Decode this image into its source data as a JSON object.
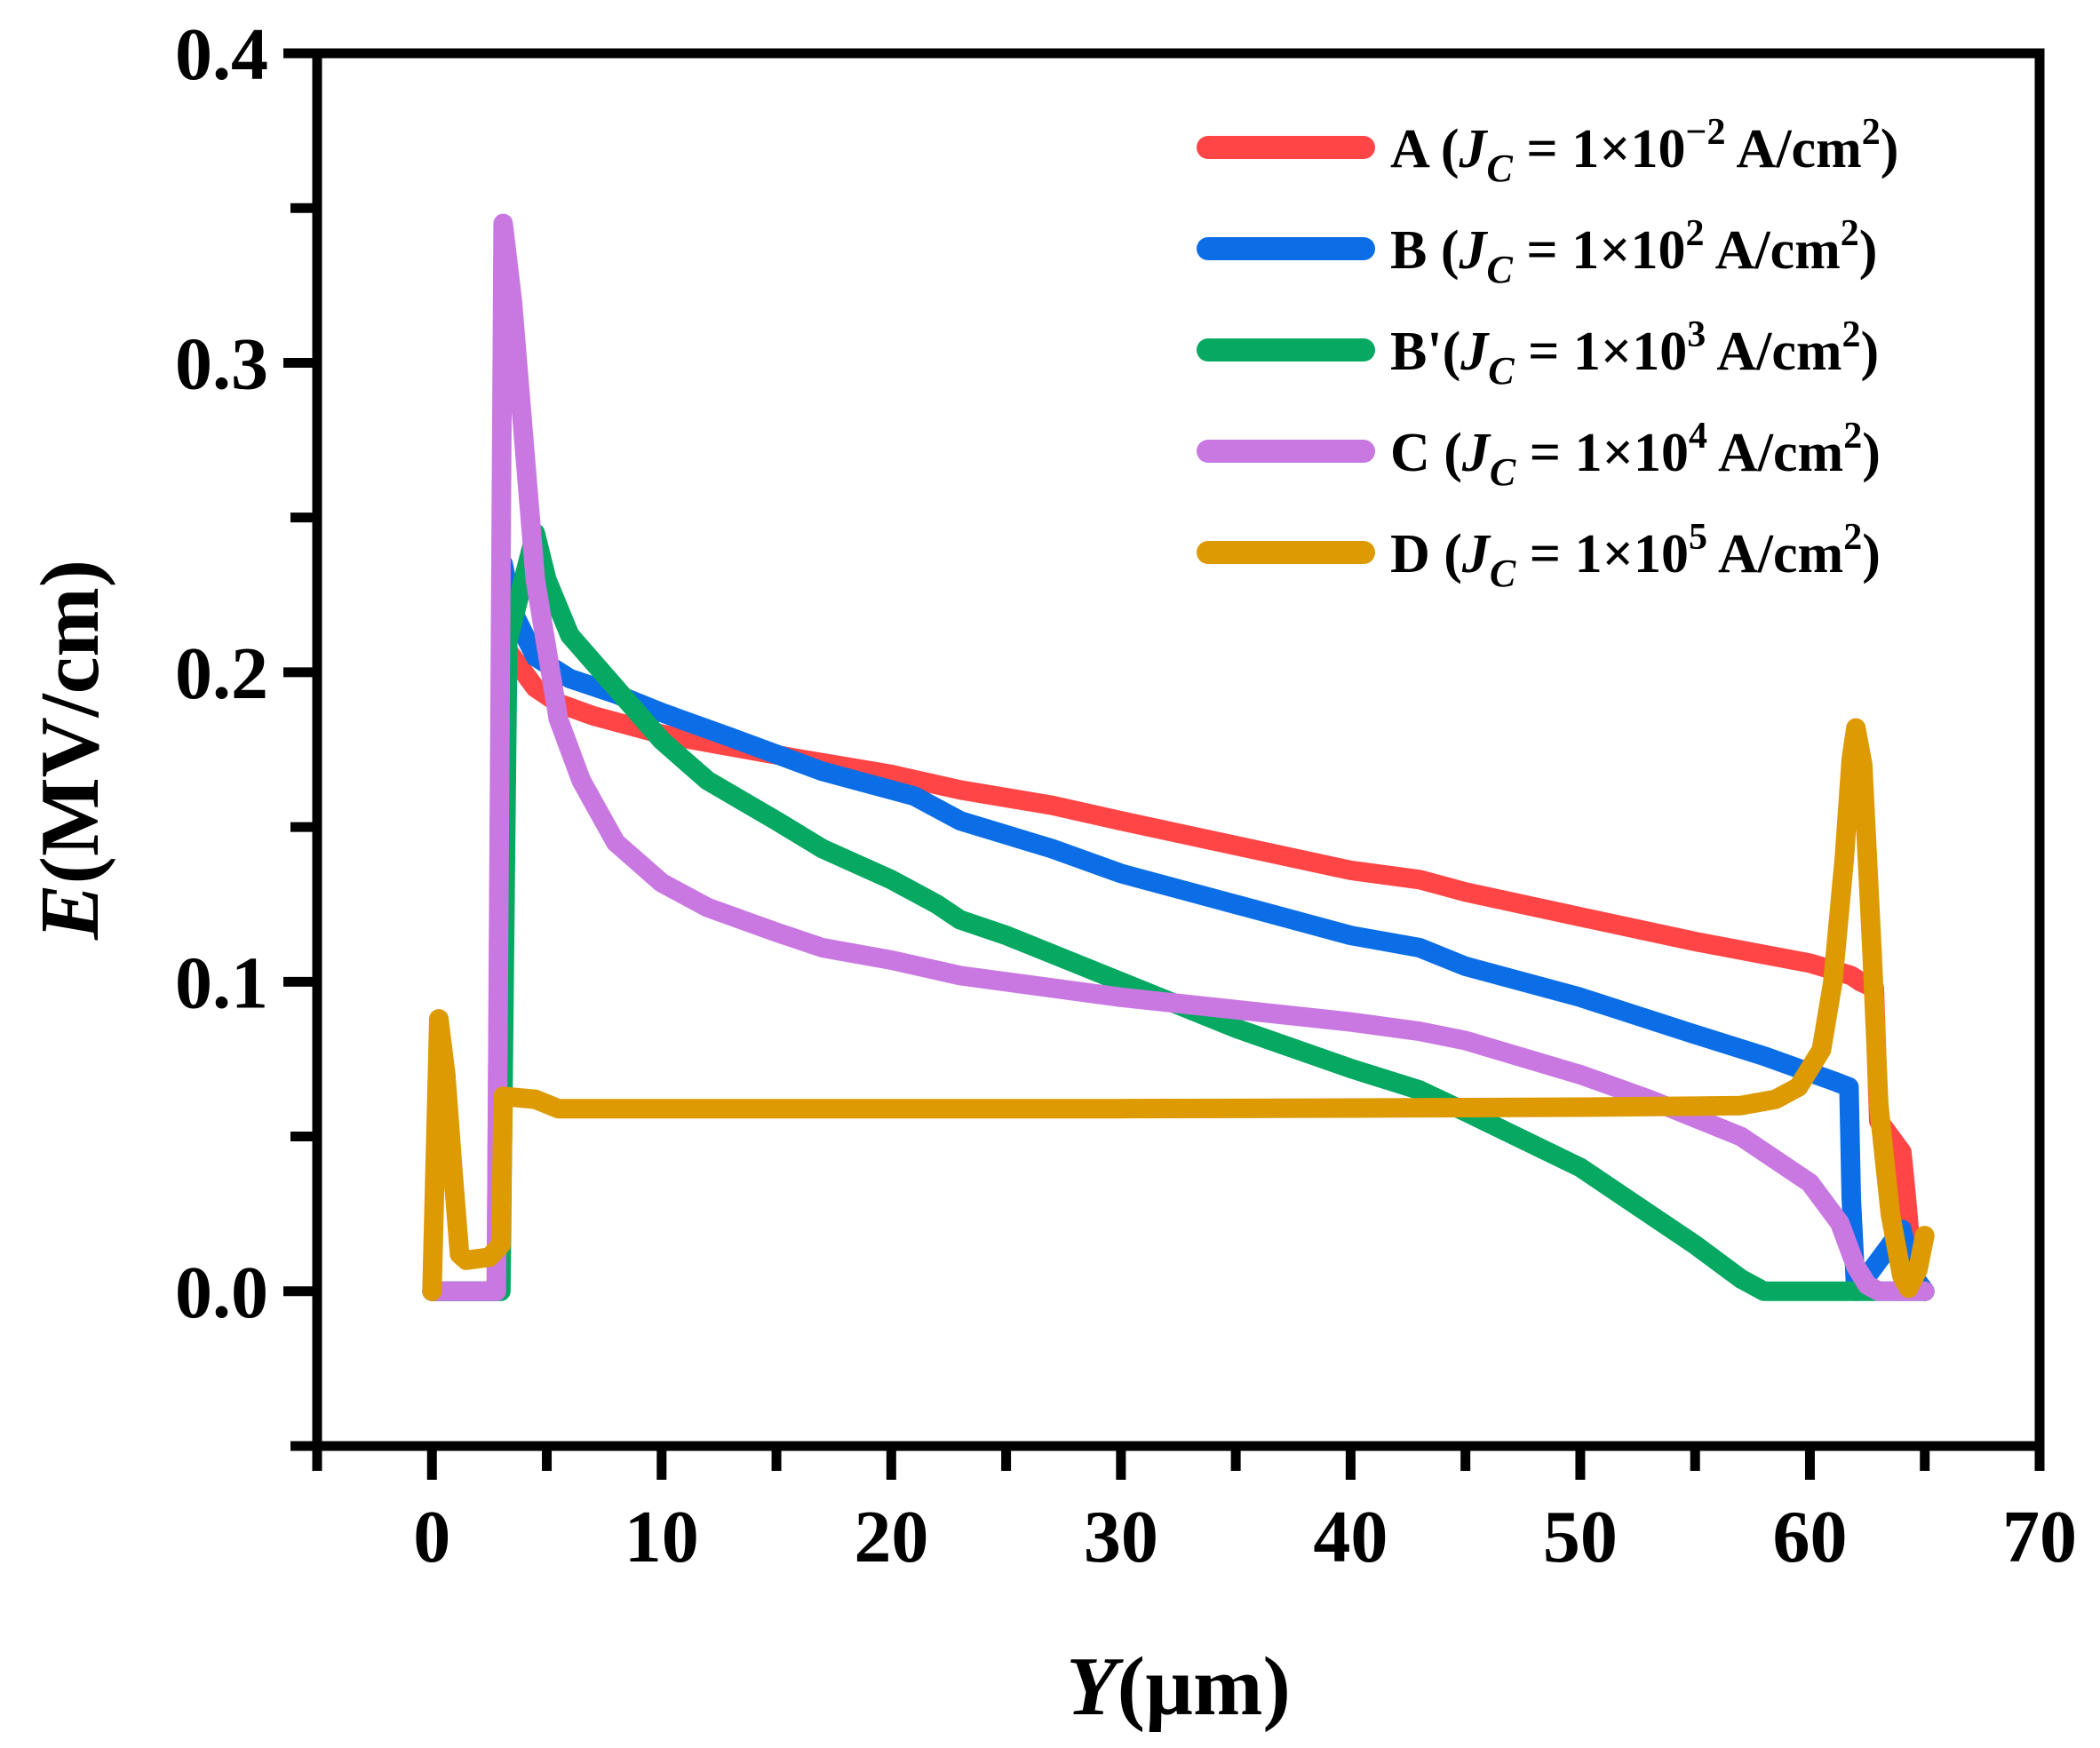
{
  "chart_data": {
    "type": "line",
    "title": "",
    "xlabel": {
      "var": "Y",
      "unit": "(µm)"
    },
    "ylabel": {
      "var": "E",
      "unit": "(MV/cm)"
    },
    "xlim": [
      -5,
      70
    ],
    "ylim": [
      -0.05,
      0.4
    ],
    "xticks": [
      0,
      10,
      20,
      30,
      40,
      50,
      60,
      70
    ],
    "xtick_labels": [
      "0",
      "10",
      "20",
      "30",
      "40",
      "50",
      "60",
      "70"
    ],
    "yticks": [
      0.0,
      0.1,
      0.2,
      0.3,
      0.4
    ],
    "ytick_labels": [
      "0.0",
      "0.1",
      "0.2",
      "0.3",
      "0.4"
    ],
    "x_minor_step": 5,
    "y_minor_step": 0.05,
    "grid": false,
    "legend_position": "top-right",
    "series": [
      {
        "name": "A",
        "legend": {
          "prefix": "A (",
          "sym": "J",
          "sub": "C",
          "eq": " = 1×10",
          "exp": "−2",
          "unit": " A/cm",
          "unit_exp": "2",
          "close": ")"
        },
        "color": "#ff4545",
        "points": [
          [
            0,
            0
          ],
          [
            2.8,
            0
          ],
          [
            3.0,
            0.21
          ],
          [
            3.5,
            0.205
          ],
          [
            4.5,
            0.195
          ],
          [
            5.5,
            0.19
          ],
          [
            7,
            0.186
          ],
          [
            10,
            0.18
          ],
          [
            13,
            0.176
          ],
          [
            16,
            0.172
          ],
          [
            20,
            0.167
          ],
          [
            23,
            0.162
          ],
          [
            27,
            0.157
          ],
          [
            30,
            0.152
          ],
          [
            35,
            0.144
          ],
          [
            40,
            0.136
          ],
          [
            43,
            0.133
          ],
          [
            45,
            0.129
          ],
          [
            50,
            0.121
          ],
          [
            55,
            0.113
          ],
          [
            60,
            0.106
          ],
          [
            61.8,
            0.102
          ],
          [
            62.2,
            0.1
          ],
          [
            62.8,
            0.098
          ],
          [
            63,
            0.055
          ],
          [
            64,
            0.045
          ],
          [
            64.2,
            0.03
          ],
          [
            64.5,
            0.005
          ],
          [
            65,
            0
          ]
        ]
      },
      {
        "name": "B",
        "legend": {
          "prefix": "B (",
          "sym": "J",
          "sub": "C",
          "eq": " = 1×10",
          "exp": "2",
          "unit": "  A/cm",
          "unit_exp": "2",
          "close": ")"
        },
        "color": "#0b6ee6",
        "points": [
          [
            0,
            0
          ],
          [
            2.9,
            0
          ],
          [
            3.1,
            0.235
          ],
          [
            3.5,
            0.22
          ],
          [
            4.5,
            0.205
          ],
          [
            6,
            0.198
          ],
          [
            8,
            0.193
          ],
          [
            10,
            0.187
          ],
          [
            13,
            0.179
          ],
          [
            17,
            0.168
          ],
          [
            21,
            0.16
          ],
          [
            23,
            0.152
          ],
          [
            27,
            0.143
          ],
          [
            30,
            0.135
          ],
          [
            35,
            0.125
          ],
          [
            40,
            0.115
          ],
          [
            43,
            0.111
          ],
          [
            45,
            0.105
          ],
          [
            50,
            0.095
          ],
          [
            55,
            0.083
          ],
          [
            58,
            0.076
          ],
          [
            61,
            0.068
          ],
          [
            61.7,
            0.066
          ],
          [
            61.8,
            0.03
          ],
          [
            62,
            0
          ],
          [
            63,
            0.01
          ],
          [
            64,
            0.02
          ],
          [
            64.5,
            0.005
          ],
          [
            65,
            0
          ]
        ]
      },
      {
        "name": "B'",
        "legend": {
          "prefix": "B'(",
          "sym": "J",
          "sub": "C",
          "eq": " = 1×10",
          "exp": "3",
          "unit": "  A/cm",
          "unit_exp": "2",
          "close": ")"
        },
        "color": "#06a862",
        "points": [
          [
            0,
            0
          ],
          [
            3.0,
            0
          ],
          [
            3.3,
            0.21
          ],
          [
            4.5,
            0.245
          ],
          [
            5,
            0.23
          ],
          [
            6,
            0.212
          ],
          [
            8,
            0.195
          ],
          [
            10,
            0.178
          ],
          [
            12,
            0.165
          ],
          [
            15,
            0.152
          ],
          [
            17,
            0.143
          ],
          [
            20,
            0.133
          ],
          [
            22,
            0.125
          ],
          [
            23,
            0.12
          ],
          [
            25,
            0.115
          ],
          [
            30,
            0.1
          ],
          [
            35,
            0.085
          ],
          [
            40,
            0.072
          ],
          [
            43,
            0.065
          ],
          [
            45,
            0.058
          ],
          [
            50,
            0.04
          ],
          [
            52,
            0.03
          ],
          [
            55,
            0.015
          ],
          [
            57,
            0.004
          ],
          [
            58,
            0
          ],
          [
            60,
            0
          ],
          [
            65,
            0
          ]
        ]
      },
      {
        "name": "C",
        "legend": {
          "prefix": "C (",
          "sym": "J",
          "sub": "C",
          "eq": " = 1×10",
          "exp": "4",
          "unit": "  A/cm",
          "unit_exp": "2",
          "close": ")"
        },
        "color": "#c978e2",
        "points": [
          [
            0,
            0
          ],
          [
            2.8,
            0
          ],
          [
            3.1,
            0.345
          ],
          [
            3.5,
            0.32
          ],
          [
            4.5,
            0.23
          ],
          [
            5.5,
            0.185
          ],
          [
            6.5,
            0.165
          ],
          [
            8,
            0.145
          ],
          [
            10,
            0.132
          ],
          [
            12,
            0.124
          ],
          [
            15,
            0.116
          ],
          [
            17,
            0.111
          ],
          [
            20,
            0.107
          ],
          [
            23,
            0.102
          ],
          [
            27,
            0.098
          ],
          [
            30,
            0.095
          ],
          [
            35,
            0.091
          ],
          [
            40,
            0.087
          ],
          [
            43,
            0.084
          ],
          [
            45,
            0.081
          ],
          [
            50,
            0.07
          ],
          [
            53,
            0.062
          ],
          [
            57,
            0.05
          ],
          [
            60,
            0.035
          ],
          [
            61.3,
            0.022
          ],
          [
            62,
            0.008
          ],
          [
            62.5,
            0.002
          ],
          [
            63,
            0
          ],
          [
            65,
            0
          ]
        ]
      },
      {
        "name": "D",
        "legend": {
          "prefix": "D (",
          "sym": "J",
          "sub": "C",
          "eq": " = 1×10",
          "exp": "5",
          "unit": "  A/cm",
          "unit_exp": "2",
          "close": ")"
        },
        "color": "#dd9a03",
        "points": [
          [
            0,
            0
          ],
          [
            0.3,
            0.088
          ],
          [
            0.6,
            0.07
          ],
          [
            0.9,
            0.04
          ],
          [
            1.2,
            0.012
          ],
          [
            1.5,
            0.01
          ],
          [
            2.5,
            0.011
          ],
          [
            3.0,
            0.015
          ],
          [
            3.1,
            0.063
          ],
          [
            4.5,
            0.062
          ],
          [
            5.5,
            0.059
          ],
          [
            10,
            0.059
          ],
          [
            20,
            0.059
          ],
          [
            30,
            0.059
          ],
          [
            40,
            0.0592
          ],
          [
            50,
            0.0595
          ],
          [
            55,
            0.0598
          ],
          [
            57,
            0.06
          ],
          [
            58.5,
            0.062
          ],
          [
            59.5,
            0.066
          ],
          [
            60.5,
            0.078
          ],
          [
            61,
            0.1
          ],
          [
            61.5,
            0.14
          ],
          [
            61.8,
            0.172
          ],
          [
            62,
            0.182
          ],
          [
            62.3,
            0.17
          ],
          [
            62.7,
            0.11
          ],
          [
            63,
            0.06
          ],
          [
            63.5,
            0.025
          ],
          [
            64,
            0.005
          ],
          [
            64.3,
            0.001
          ],
          [
            64.7,
            0.007
          ],
          [
            65,
            0.018
          ]
        ]
      }
    ]
  }
}
